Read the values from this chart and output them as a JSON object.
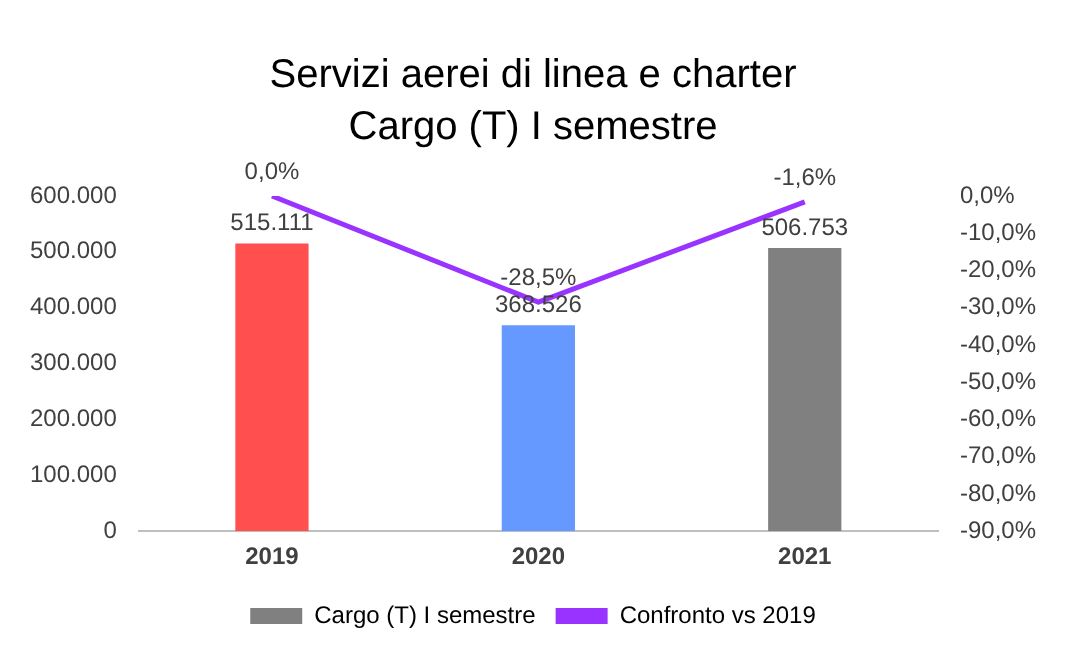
{
  "chart_data": {
    "type": "bar",
    "title": "Servizi aerei di linea e charter",
    "subtitle": "Cargo (T) I semestre",
    "categories": [
      "2019",
      "2020",
      "2021"
    ],
    "series": [
      {
        "name": "Cargo (T) I semestre",
        "color": "#808080",
        "colors": [
          "#ff4f4f",
          "#6699ff",
          "#808080"
        ],
        "values": [
          515111,
          368526,
          506753
        ],
        "value_labels": [
          "515.111",
          "368.526",
          "506.753"
        ]
      },
      {
        "type": "line",
        "name": "Confronto vs 2019",
        "axis": "y2",
        "color": "#9933ff",
        "values": [
          0,
          -28.5,
          -1.6
        ],
        "value_labels": [
          "0,0%",
          "-28,5%",
          "-1,6%"
        ]
      }
    ],
    "ylim": [
      0,
      600000
    ],
    "yticks": [
      {
        "value": 0,
        "label": "0"
      },
      {
        "value": 100000,
        "label": "100.000"
      },
      {
        "value": 200000,
        "label": "200.000"
      },
      {
        "value": 300000,
        "label": "300.000"
      },
      {
        "value": 400000,
        "label": "400.000"
      },
      {
        "value": 500000,
        "label": "500.000"
      },
      {
        "value": 600000,
        "label": "600.000"
      }
    ],
    "y2lim": [
      -90,
      0
    ],
    "y2ticks": [
      {
        "value": 0,
        "label": "0,0%"
      },
      {
        "value": -10,
        "label": "-10,0%"
      },
      {
        "value": -20,
        "label": "-20,0%"
      },
      {
        "value": -30,
        "label": "-30,0%"
      },
      {
        "value": -40,
        "label": "-40,0%"
      },
      {
        "value": -50,
        "label": "-50,0%"
      },
      {
        "value": -60,
        "label": "-60,0%"
      },
      {
        "value": -70,
        "label": "-70,0%"
      },
      {
        "value": -80,
        "label": "-80,0%"
      },
      {
        "value": -90,
        "label": "-90,0%"
      }
    ],
    "legend": "bottom",
    "grid": false,
    "marker": "none"
  }
}
